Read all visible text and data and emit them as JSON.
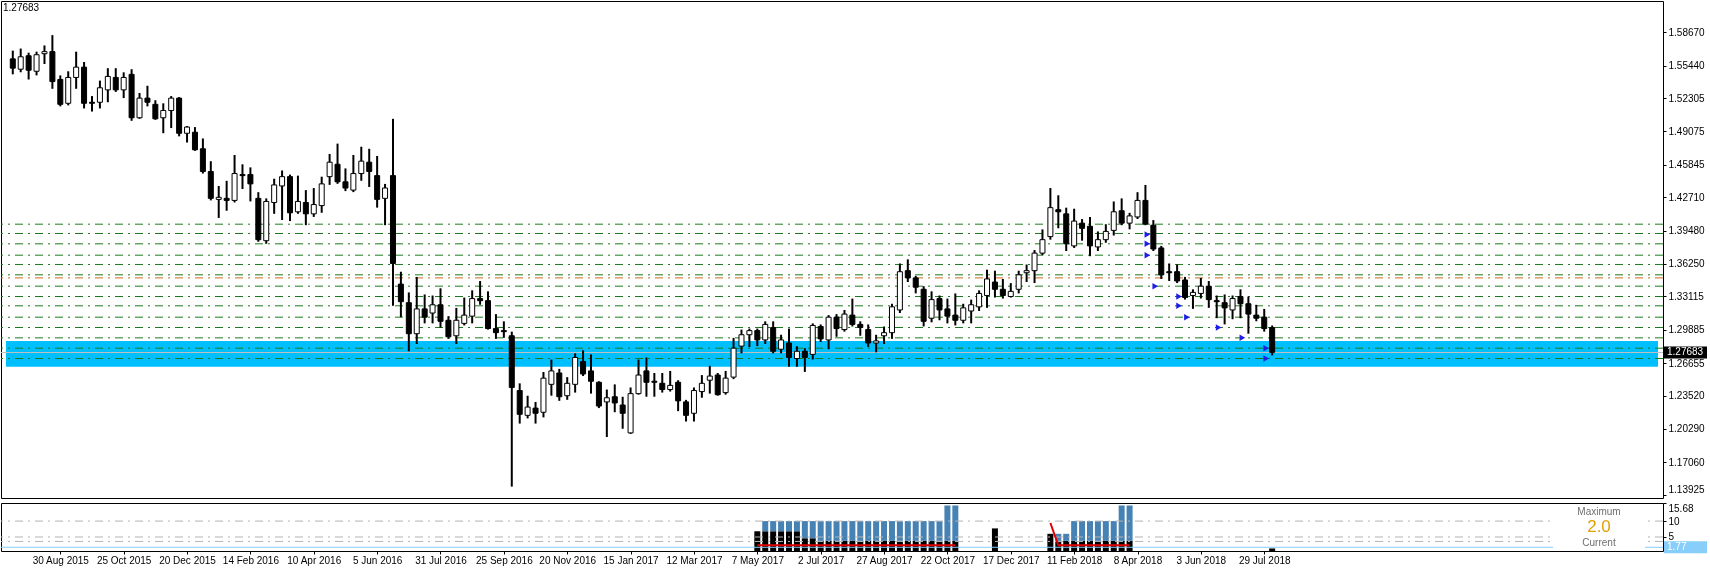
{
  "chart_data": [
    {
      "type": "candlestick",
      "color": "#000000",
      "xlim": [
        "2015-07-13",
        "2019-07-12"
      ],
      "ylim": [
        1.136,
        1.617
      ],
      "tick_labels": "y",
      "yticks": [
        {
          "value": 1.13925,
          "label": "1.13925"
        },
        {
          "value": 1.1706,
          "label": "1.17060"
        },
        {
          "value": 1.2029,
          "label": "1.20290"
        },
        {
          "value": 1.2352,
          "label": "1.23520"
        },
        {
          "value": 1.26655,
          "label": "1.26655"
        },
        {
          "value": 1.29885,
          "label": "1.29885"
        },
        {
          "value": 1.33115,
          "label": "1.33115"
        },
        {
          "value": 1.3625,
          "label": "1.36250"
        },
        {
          "value": 1.3948,
          "label": "1.39480"
        },
        {
          "value": 1.4271,
          "label": "1.42710"
        },
        {
          "value": 1.45845,
          "label": "1.45845"
        },
        {
          "value": 1.49075,
          "label": "1.49075"
        },
        {
          "value": 1.52305,
          "label": "1.52305"
        },
        {
          "value": 1.5544,
          "label": "1.55440"
        },
        {
          "value": 1.5867,
          "label": "1.58670"
        }
      ],
      "x": [
        "2015-07-19",
        "2015-07-26",
        "2015-08-02",
        "2015-08-09",
        "2015-08-16",
        "2015-08-23",
        "2015-08-30",
        "2015-09-06",
        "2015-09-13",
        "2015-09-20",
        "2015-09-27",
        "2015-10-04",
        "2015-10-11",
        "2015-10-18",
        "2015-10-25",
        "2015-11-01",
        "2015-11-08",
        "2015-11-15",
        "2015-11-22",
        "2015-11-29",
        "2015-12-06",
        "2015-12-13",
        "2015-12-20",
        "2015-12-27",
        "2016-01-03",
        "2016-01-10",
        "2016-01-17",
        "2016-01-24",
        "2016-01-31",
        "2016-02-07",
        "2016-02-14",
        "2016-02-21",
        "2016-02-28",
        "2016-03-06",
        "2016-03-13",
        "2016-03-20",
        "2016-03-27",
        "2016-04-03",
        "2016-04-10",
        "2016-04-17",
        "2016-04-24",
        "2016-05-01",
        "2016-05-08",
        "2016-05-15",
        "2016-05-22",
        "2016-05-29",
        "2016-06-05",
        "2016-06-12",
        "2016-06-19",
        "2016-06-26",
        "2016-07-03",
        "2016-07-10",
        "2016-07-17",
        "2016-07-24",
        "2016-07-31",
        "2016-08-07",
        "2016-08-14",
        "2016-08-21",
        "2016-08-28",
        "2016-09-04",
        "2016-09-11",
        "2016-09-18",
        "2016-09-25",
        "2016-10-02",
        "2016-10-09",
        "2016-10-16",
        "2016-10-23",
        "2016-10-30",
        "2016-11-06",
        "2016-11-13",
        "2016-11-20",
        "2016-11-27",
        "2016-12-04",
        "2016-12-11",
        "2016-12-18",
        "2016-12-25",
        "2017-01-01",
        "2017-01-08",
        "2017-01-15",
        "2017-01-22",
        "2017-01-29",
        "2017-02-05",
        "2017-02-12",
        "2017-02-19",
        "2017-02-26",
        "2017-03-05",
        "2017-03-12",
        "2017-03-19",
        "2017-03-26",
        "2017-04-02",
        "2017-04-09",
        "2017-04-16",
        "2017-04-23",
        "2017-04-30",
        "2017-05-07",
        "2017-05-14",
        "2017-05-21",
        "2017-05-28",
        "2017-06-04",
        "2017-06-11",
        "2017-06-18",
        "2017-06-25",
        "2017-07-02",
        "2017-07-09",
        "2017-07-16",
        "2017-07-23",
        "2017-07-30",
        "2017-08-06",
        "2017-08-13",
        "2017-08-20",
        "2017-08-27",
        "2017-09-03",
        "2017-09-10",
        "2017-09-17",
        "2017-09-24",
        "2017-10-01",
        "2017-10-08",
        "2017-10-15",
        "2017-10-22",
        "2017-10-29",
        "2017-11-05",
        "2017-11-12",
        "2017-11-19",
        "2017-11-26",
        "2017-12-03",
        "2017-12-10",
        "2017-12-17",
        "2017-12-24",
        "2017-12-31",
        "2018-01-07",
        "2018-01-14",
        "2018-01-21",
        "2018-01-28",
        "2018-02-04",
        "2018-02-11",
        "2018-02-18",
        "2018-02-25",
        "2018-03-04",
        "2018-03-11",
        "2018-03-18",
        "2018-03-25",
        "2018-04-01",
        "2018-04-08",
        "2018-04-15",
        "2018-04-22",
        "2018-04-29",
        "2018-05-06",
        "2018-05-13",
        "2018-05-20",
        "2018-05-27",
        "2018-06-03",
        "2018-06-10",
        "2018-06-17",
        "2018-06-24",
        "2018-07-01",
        "2018-07-08",
        "2018-07-15",
        "2018-07-22",
        "2018-07-29",
        "2018-08-05"
      ],
      "ohlc": [
        [
          1.561,
          1.568,
          1.547,
          1.552
        ],
        [
          1.551,
          1.57,
          1.549,
          1.563
        ],
        [
          1.564,
          1.566,
          1.542,
          1.55
        ],
        [
          1.549,
          1.567,
          1.546,
          1.565
        ],
        [
          1.566,
          1.573,
          1.557,
          1.568
        ],
        [
          1.568,
          1.583,
          1.533,
          1.539
        ],
        [
          1.541,
          1.544,
          1.516,
          1.517
        ],
        [
          1.518,
          1.548,
          1.517,
          1.543
        ],
        [
          1.543,
          1.567,
          1.533,
          1.553
        ],
        [
          1.553,
          1.557,
          1.514,
          1.518
        ],
        [
          1.519,
          1.524,
          1.511,
          1.518
        ],
        [
          1.519,
          1.539,
          1.514,
          1.533
        ],
        [
          1.531,
          1.551,
          1.52,
          1.544
        ],
        [
          1.543,
          1.551,
          1.53,
          1.531
        ],
        [
          1.531,
          1.547,
          1.524,
          1.543
        ],
        [
          1.546,
          1.55,
          1.502,
          1.504
        ],
        [
          1.504,
          1.527,
          1.504,
          1.523
        ],
        [
          1.523,
          1.534,
          1.516,
          1.519
        ],
        [
          1.517,
          1.52,
          1.503,
          1.503
        ],
        [
          1.504,
          1.517,
          1.49,
          1.511
        ],
        [
          1.511,
          1.524,
          1.495,
          1.523
        ],
        [
          1.523,
          1.523,
          1.487,
          1.489
        ],
        [
          1.489,
          1.495,
          1.481,
          1.495
        ],
        [
          1.49,
          1.494,
          1.473,
          1.473
        ],
        [
          1.474,
          1.483,
          1.451,
          1.452
        ],
        [
          1.452,
          1.461,
          1.425,
          1.426
        ],
        [
          1.425,
          1.437,
          1.408,
          1.427
        ],
        [
          1.426,
          1.442,
          1.415,
          1.424
        ],
        [
          1.424,
          1.467,
          1.423,
          1.45
        ],
        [
          1.449,
          1.458,
          1.436,
          1.448
        ],
        [
          1.449,
          1.455,
          1.424,
          1.44
        ],
        [
          1.426,
          1.431,
          1.385,
          1.386
        ],
        [
          1.385,
          1.425,
          1.383,
          1.423
        ],
        [
          1.422,
          1.444,
          1.412,
          1.439
        ],
        [
          1.438,
          1.452,
          1.406,
          1.447
        ],
        [
          1.447,
          1.448,
          1.405,
          1.412
        ],
        [
          1.413,
          1.447,
          1.412,
          1.423
        ],
        [
          1.422,
          1.433,
          1.401,
          1.411
        ],
        [
          1.411,
          1.435,
          1.409,
          1.42
        ],
        [
          1.419,
          1.446,
          1.413,
          1.44
        ],
        [
          1.447,
          1.468,
          1.44,
          1.461
        ],
        [
          1.459,
          1.478,
          1.441,
          1.442
        ],
        [
          1.442,
          1.454,
          1.434,
          1.436
        ],
        [
          1.434,
          1.467,
          1.433,
          1.45
        ],
        [
          1.45,
          1.475,
          1.444,
          1.462
        ],
        [
          1.461,
          1.473,
          1.438,
          1.452
        ],
        [
          1.448,
          1.466,
          1.418,
          1.425
        ],
        [
          1.426,
          1.439,
          1.401,
          1.436
        ],
        [
          1.448,
          1.502,
          1.323,
          1.363
        ],
        [
          1.343,
          1.354,
          1.312,
          1.326
        ],
        [
          1.325,
          1.334,
          1.279,
          1.295
        ],
        [
          1.295,
          1.349,
          1.286,
          1.319
        ],
        [
          1.319,
          1.332,
          1.306,
          1.311
        ],
        [
          1.315,
          1.331,
          1.306,
          1.323
        ],
        [
          1.323,
          1.338,
          1.302,
          1.307
        ],
        [
          1.308,
          1.311,
          1.291,
          1.292
        ],
        [
          1.293,
          1.319,
          1.286,
          1.308
        ],
        [
          1.305,
          1.329,
          1.304,
          1.313
        ],
        [
          1.312,
          1.336,
          1.306,
          1.329
        ],
        [
          1.329,
          1.345,
          1.324,
          1.327
        ],
        [
          1.327,
          1.335,
          1.3,
          1.3
        ],
        [
          1.3,
          1.313,
          1.291,
          1.296
        ],
        [
          1.298,
          1.306,
          1.292,
          1.297
        ],
        [
          1.293,
          1.296,
          1.148,
          1.243
        ],
        [
          1.24,
          1.246,
          1.209,
          1.217
        ],
        [
          1.216,
          1.234,
          1.214,
          1.224
        ],
        [
          1.223,
          1.228,
          1.209,
          1.218
        ],
        [
          1.219,
          1.257,
          1.215,
          1.252
        ],
        [
          1.246,
          1.269,
          1.236,
          1.259
        ],
        [
          1.257,
          1.26,
          1.231,
          1.234
        ],
        [
          1.235,
          1.252,
          1.232,
          1.247
        ],
        [
          1.246,
          1.275,
          1.239,
          1.272
        ],
        [
          1.268,
          1.278,
          1.255,
          1.256
        ],
        [
          1.259,
          1.274,
          1.238,
          1.249
        ],
        [
          1.248,
          1.248,
          1.224,
          1.225
        ],
        [
          1.229,
          1.24,
          1.196,
          1.233
        ],
        [
          1.234,
          1.245,
          1.22,
          1.228
        ],
        [
          1.226,
          1.233,
          1.204,
          1.218
        ],
        [
          1.199,
          1.242,
          1.199,
          1.237
        ],
        [
          1.237,
          1.269,
          1.237,
          1.255
        ],
        [
          1.259,
          1.271,
          1.235,
          1.248
        ],
        [
          1.249,
          1.256,
          1.235,
          1.248
        ],
        [
          1.247,
          1.256,
          1.239,
          1.241
        ],
        [
          1.241,
          1.258,
          1.24,
          1.245
        ],
        [
          1.248,
          1.249,
          1.221,
          1.23
        ],
        [
          1.229,
          1.23,
          1.211,
          1.216
        ],
        [
          1.218,
          1.242,
          1.211,
          1.24
        ],
        [
          1.239,
          1.254,
          1.234,
          1.247
        ],
        [
          1.25,
          1.263,
          1.238,
          1.254
        ],
        [
          1.255,
          1.256,
          1.236,
          1.236
        ],
        [
          1.238,
          1.258,
          1.237,
          1.252
        ],
        [
          1.253,
          1.29,
          1.252,
          1.281
        ],
        [
          1.283,
          1.298,
          1.277,
          1.294
        ],
        [
          1.294,
          1.299,
          1.283,
          1.298
        ],
        [
          1.298,
          1.299,
          1.284,
          1.289
        ],
        [
          1.289,
          1.306,
          1.286,
          1.304
        ],
        [
          1.301,
          1.306,
          1.277,
          1.278
        ],
        [
          1.28,
          1.293,
          1.277,
          1.289
        ],
        [
          1.286,
          1.299,
          1.264,
          1.272
        ],
        [
          1.271,
          1.282,
          1.264,
          1.278
        ],
        [
          1.278,
          1.28,
          1.259,
          1.272
        ],
        [
          1.275,
          1.304,
          1.271,
          1.303
        ],
        [
          1.302,
          1.303,
          1.288,
          1.29
        ],
        [
          1.289,
          1.312,
          1.281,
          1.311
        ],
        [
          1.311,
          1.313,
          1.293,
          1.3
        ],
        [
          1.299,
          1.317,
          1.298,
          1.314
        ],
        [
          1.313,
          1.328,
          1.303,
          1.304
        ],
        [
          1.304,
          1.306,
          1.294,
          1.301
        ],
        [
          1.299,
          1.303,
          1.283,
          1.286
        ],
        [
          1.286,
          1.293,
          1.278,
          1.288
        ],
        [
          1.293,
          1.301,
          1.286,
          1.296
        ],
        [
          1.296,
          1.323,
          1.291,
          1.321
        ],
        [
          1.318,
          1.362,
          1.316,
          1.355
        ],
        [
          1.356,
          1.366,
          1.346,
          1.349
        ],
        [
          1.349,
          1.35,
          1.335,
          1.34
        ],
        [
          1.338,
          1.34,
          1.303,
          1.307
        ],
        [
          1.31,
          1.335,
          1.307,
          1.328
        ],
        [
          1.329,
          1.331,
          1.309,
          1.318
        ],
        [
          1.319,
          1.328,
          1.306,
          1.312
        ],
        [
          1.313,
          1.333,
          1.304,
          1.308
        ],
        [
          1.308,
          1.323,
          1.306,
          1.32
        ],
        [
          1.317,
          1.327,
          1.306,
          1.323
        ],
        [
          1.321,
          1.336,
          1.318,
          1.334
        ],
        [
          1.332,
          1.356,
          1.321,
          1.348
        ],
        [
          1.345,
          1.355,
          1.331,
          1.338
        ],
        [
          1.338,
          1.347,
          1.33,
          1.332
        ],
        [
          1.331,
          1.343,
          1.331,
          1.336
        ],
        [
          1.338,
          1.355,
          1.335,
          1.352
        ],
        [
          1.354,
          1.361,
          1.346,
          1.356
        ],
        [
          1.356,
          1.375,
          1.345,
          1.373
        ],
        [
          1.373,
          1.395,
          1.372,
          1.386
        ],
        [
          1.389,
          1.435,
          1.387,
          1.417
        ],
        [
          1.415,
          1.428,
          1.398,
          1.413
        ],
        [
          1.411,
          1.416,
          1.376,
          1.382
        ],
        [
          1.38,
          1.415,
          1.379,
          1.404
        ],
        [
          1.402,
          1.405,
          1.386,
          1.397
        ],
        [
          1.399,
          1.407,
          1.371,
          1.38
        ],
        [
          1.379,
          1.393,
          1.376,
          1.386
        ],
        [
          1.386,
          1.4,
          1.384,
          1.394
        ],
        [
          1.395,
          1.422,
          1.391,
          1.413
        ],
        [
          1.414,
          1.425,
          1.401,
          1.402
        ],
        [
          1.402,
          1.411,
          1.397,
          1.409
        ],
        [
          1.408,
          1.431,
          1.407,
          1.424
        ],
        [
          1.424,
          1.438,
          1.401,
          1.401
        ],
        [
          1.4,
          1.404,
          1.376,
          1.377
        ],
        [
          1.378,
          1.379,
          1.349,
          1.352
        ],
        [
          1.355,
          1.362,
          1.347,
          1.354
        ],
        [
          1.355,
          1.361,
          1.345,
          1.346
        ],
        [
          1.347,
          1.349,
          1.329,
          1.33
        ],
        [
          1.332,
          1.337,
          1.32,
          1.335
        ],
        [
          1.334,
          1.348,
          1.33,
          1.341
        ],
        [
          1.341,
          1.345,
          1.321,
          1.328
        ],
        [
          1.327,
          1.331,
          1.311,
          1.326
        ],
        [
          1.325,
          1.332,
          1.305,
          1.32
        ],
        [
          1.318,
          1.331,
          1.31,
          1.329
        ],
        [
          1.331,
          1.337,
          1.311,
          1.324
        ],
        [
          1.324,
          1.33,
          1.296,
          1.314
        ],
        [
          1.313,
          1.322,
          1.308,
          1.31
        ],
        [
          1.311,
          1.318,
          1.298,
          1.3
        ],
        [
          1.301,
          1.302,
          1.275,
          1.277
        ]
      ],
      "series": [
        {
          "type": "scatter",
          "color": "#1e1ee6",
          "marker": "triangle",
          "x": [
            "2018-04-22",
            "2018-04-22",
            "2018-04-22",
            "2018-04-29",
            "2018-05-20",
            "2018-05-20",
            "2018-05-27",
            "2018-06-24",
            "2018-07-15",
            "2018-08-05",
            "2018-08-05"
          ],
          "values": [
            1.391,
            1.382,
            1.371,
            1.341,
            1.331,
            1.322,
            1.311,
            1.301,
            1.291,
            1.281,
            1.271
          ]
        }
      ],
      "bands": [
        {
          "axis": "y",
          "from": 1.263,
          "to": 1.288,
          "color": "#00bfff"
        }
      ],
      "ref_lines": [
        {
          "axis": "y",
          "value": 1.401,
          "color": "#1f7a1f",
          "line_style": "dashed"
        },
        {
          "axis": "y",
          "value": 1.392,
          "color": "#1f7a1f",
          "line_style": "dashed"
        },
        {
          "axis": "y",
          "value": 1.382,
          "color": "#1f7a1f",
          "line_style": "dashed"
        },
        {
          "axis": "y",
          "value": 1.371,
          "color": "#1f7a1f",
          "line_style": "dashed"
        },
        {
          "axis": "y",
          "value": 1.362,
          "color": "#1f7a1f",
          "line_style": "dashed"
        },
        {
          "axis": "y",
          "value": 1.352,
          "color": "#1f7a1f",
          "line_style": "dashed"
        },
        {
          "axis": "y",
          "value": 1.349,
          "color": "#d2691e",
          "line_style": "dashed"
        },
        {
          "axis": "y",
          "value": 1.341,
          "color": "#1f7a1f",
          "line_style": "dashed"
        },
        {
          "axis": "y",
          "value": 1.331,
          "color": "#1f7a1f",
          "line_style": "dashed"
        },
        {
          "axis": "y",
          "value": 1.322,
          "color": "#1f7a1f",
          "line_style": "dashed"
        },
        {
          "axis": "y",
          "value": 1.311,
          "color": "#1f7a1f",
          "line_style": "dashed"
        },
        {
          "axis": "y",
          "value": 1.301,
          "color": "#1f7a1f",
          "line_style": "dashed"
        },
        {
          "axis": "y",
          "value": 1.291,
          "color": "#1f7a1f",
          "line_style": "dashed"
        },
        {
          "axis": "y",
          "value": 1.281,
          "color": "#1f7a1f",
          "line_style": "dashed"
        },
        {
          "axis": "y",
          "value": 1.271,
          "color": "#1f7a1f",
          "line_style": "dashed"
        },
        {
          "axis": "y",
          "value": 1.27683,
          "label": "1.27683",
          "color": "#c0c0c0",
          "line_style": "solid"
        }
      ],
      "annotations": [
        "1.27683"
      ]
    },
    {
      "type": "bar",
      "stacked": true,
      "xlim": [
        "2015-07-13",
        "2019-07-12"
      ],
      "ylim": [
        0.6,
        15.68
      ],
      "yticks": [
        5,
        10,
        15.68
      ],
      "xticks": [
        {
          "value": "2015-08-30",
          "label": "30 Aug 2015"
        },
        {
          "value": "2015-10-25",
          "label": "25 Oct 2015"
        },
        {
          "value": "2015-12-20",
          "label": "20 Dec 2015"
        },
        {
          "value": "2016-02-14",
          "label": "14 Feb 2016"
        },
        {
          "value": "2016-04-10",
          "label": "10 Apr 2016"
        },
        {
          "value": "2016-06-05",
          "label": "5 Jun 2016"
        },
        {
          "value": "2016-07-31",
          "label": "31 Jul 2016"
        },
        {
          "value": "2016-09-25",
          "label": "25 Sep 2016"
        },
        {
          "value": "2016-11-20",
          "label": "20 Nov 2016"
        },
        {
          "value": "2017-01-15",
          "label": "15 Jan 2017"
        },
        {
          "value": "2017-03-12",
          "label": "12 Mar 2017"
        },
        {
          "value": "2017-05-07",
          "label": "7 May 2017"
        },
        {
          "value": "2017-07-02",
          "label": "2 Jul 2017"
        },
        {
          "value": "2017-08-27",
          "label": "27 Aug 2017"
        },
        {
          "value": "2017-10-22",
          "label": "22 Oct 2017"
        },
        {
          "value": "2017-12-17",
          "label": "17 Dec 2017"
        },
        {
          "value": "2018-02-11",
          "label": "11 Feb 2018"
        },
        {
          "value": "2018-04-08",
          "label": "8 Apr 2018"
        },
        {
          "value": "2018-06-03",
          "label": "3 Jun 2018"
        },
        {
          "value": "2018-07-29",
          "label": "29 Jul 2018"
        }
      ],
      "x": [
        "2017-05-07",
        "2017-05-14",
        "2017-05-21",
        "2017-05-28",
        "2017-06-04",
        "2017-06-11",
        "2017-06-18",
        "2017-06-25",
        "2017-07-02",
        "2017-07-09",
        "2017-07-16",
        "2017-07-23",
        "2017-07-30",
        "2017-08-06",
        "2017-08-13",
        "2017-08-20",
        "2017-08-27",
        "2017-09-03",
        "2017-09-10",
        "2017-09-17",
        "2017-09-24",
        "2017-10-01",
        "2017-10-08",
        "2017-10-15",
        "2017-10-22",
        "2017-10-29",
        "2017-11-05",
        "2017-11-12",
        "2017-11-19",
        "2017-11-26",
        "2017-12-03",
        "2017-12-10",
        "2017-12-17",
        "2017-12-24",
        "2017-12-31",
        "2018-01-07",
        "2018-01-14",
        "2018-01-21",
        "2018-01-28",
        "2018-02-04",
        "2018-02-11",
        "2018-02-18",
        "2018-02-25",
        "2018-03-04",
        "2018-03-11",
        "2018-03-18",
        "2018-03-25",
        "2018-04-01",
        "2018-04-08",
        "2018-04-15",
        "2018-04-22",
        "2018-04-29",
        "2018-05-06",
        "2018-05-13",
        "2018-05-20",
        "2018-05-27",
        "2018-06-03",
        "2018-06-10",
        "2018-06-17",
        "2018-06-24",
        "2018-07-01",
        "2018-07-08",
        "2018-07-15",
        "2018-07-22",
        "2018-07-29",
        "2018-08-05"
      ],
      "series": [
        {
          "color": "#000000",
          "values": [
            6.8,
            6.8,
            6.8,
            6.8,
            6.8,
            6.8,
            4.6,
            4.6,
            3.8,
            3.8,
            3.8,
            3.8,
            3.8,
            3.8,
            3.8,
            3.8,
            3.8,
            3.8,
            3.8,
            3.8,
            3.8,
            3.8,
            3.8,
            3.8,
            3.8,
            3.8,
            null,
            null,
            null,
            null,
            7.7,
            null,
            null,
            null,
            null,
            null,
            null,
            6.0,
            3.8,
            3.8,
            3.8,
            3.8,
            3.8,
            3.8,
            3.8,
            3.8,
            3.8,
            3.8,
            null,
            null,
            null,
            null,
            null,
            null,
            null,
            null,
            null,
            null,
            null,
            null,
            null,
            null,
            null,
            null,
            null,
            1.4
          ]
        },
        {
          "color": "#4682b4",
          "values": [
            null,
            3.2,
            3.2,
            3.2,
            3.2,
            3.2,
            5.4,
            5.4,
            6.2,
            6.2,
            6.2,
            6.2,
            6.2,
            6.2,
            6.2,
            6.2,
            6.2,
            6.2,
            6.2,
            6.2,
            6.2,
            6.2,
            6.2,
            6.2,
            11.1,
            11.1,
            null,
            null,
            null,
            null,
            null,
            null,
            null,
            null,
            null,
            null,
            null,
            null,
            2.2,
            2.2,
            6.2,
            6.2,
            6.2,
            6.2,
            6.2,
            6.2,
            11.1,
            11.1,
            null,
            null,
            null,
            null,
            null,
            null,
            null,
            null,
            null,
            null,
            null,
            null,
            null,
            null,
            null,
            null,
            null,
            null
          ]
        },
        {
          "type": "line",
          "color": "#e00000",
          "line_style": "solid",
          "values": [
            2.4,
            2.4,
            2.4,
            2.4,
            2.4,
            2.4,
            2.4,
            2.4,
            2.4,
            2.4,
            2.4,
            2.4,
            2.4,
            2.4,
            2.4,
            2.4,
            2.4,
            2.4,
            2.4,
            2.4,
            2.4,
            2.4,
            2.4,
            2.4,
            2.4,
            2.4,
            null,
            null,
            null,
            null,
            null,
            null,
            null,
            null,
            null,
            null,
            null,
            9.4,
            2.4,
            2.4,
            2.4,
            2.4,
            2.4,
            2.4,
            2.4,
            2.4,
            2.4,
            2.4,
            null,
            null,
            null,
            null,
            null,
            null,
            null,
            null,
            null,
            null,
            null,
            null,
            null,
            null,
            null,
            null,
            null,
            null
          ]
        }
      ],
      "ref_lines": [
        {
          "axis": "y",
          "value": 10,
          "color": "#b4b4b4",
          "line_style": "dashed"
        },
        {
          "axis": "y",
          "value": 5,
          "color": "#b4b4b4",
          "line_style": "dashed"
        },
        {
          "axis": "y",
          "value": 3.6,
          "color": "#b4b4b4",
          "line_style": "dashed"
        },
        {
          "axis": "y",
          "value": 1.77,
          "label": "1.77",
          "color": "#87cefa",
          "line_style": "solid"
        }
      ]
    },
    {
      "type": "other",
      "annotations": [
        "Maximum",
        "2.0",
        "Current"
      ]
    }
  ]
}
